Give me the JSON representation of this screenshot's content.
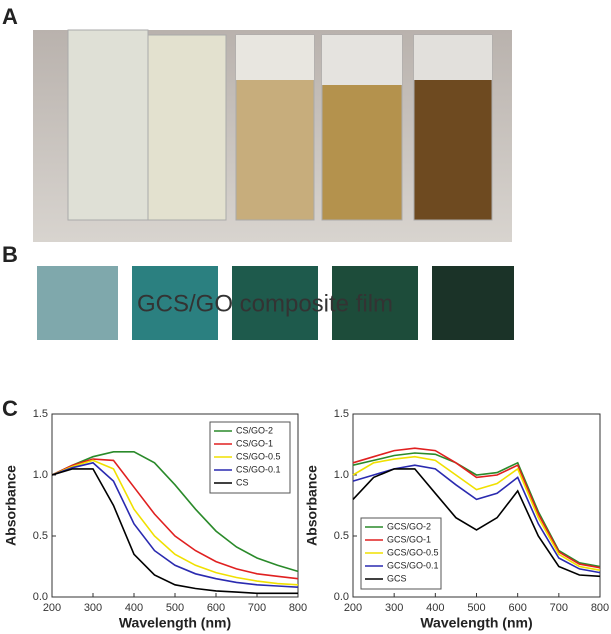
{
  "panels": {
    "a": "A",
    "b": "B",
    "c": "C",
    "film_label": "GCS/GO composite film"
  },
  "chart_data": [
    {
      "type": "line",
      "xlabel": "Wavelength (nm)",
      "ylabel": "Absorbance",
      "x": [
        200,
        250,
        300,
        350,
        400,
        450,
        500,
        550,
        600,
        650,
        700,
        750,
        800
      ],
      "xlim": [
        200,
        800
      ],
      "xticks": [
        200,
        300,
        400,
        500,
        600,
        700,
        800
      ],
      "ylim": [
        0,
        1.5
      ],
      "yticks": [
        {
          "value": 0,
          "label": "0.0"
        },
        {
          "value": 0.5,
          "label": "0.5"
        },
        {
          "value": 1,
          "label": "1.0"
        },
        {
          "value": 1.5,
          "label": "1.5"
        }
      ],
      "legend": "upper-right",
      "series": [
        {
          "name": "CS/GO-2",
          "color": "#2a8a2a",
          "values": [
            1.0,
            1.08,
            1.15,
            1.19,
            1.19,
            1.1,
            0.92,
            0.72,
            0.54,
            0.41,
            0.32,
            0.26,
            0.21
          ]
        },
        {
          "name": "CS/GO-1",
          "color": "#e02020",
          "values": [
            1.0,
            1.08,
            1.13,
            1.12,
            0.9,
            0.68,
            0.5,
            0.38,
            0.29,
            0.23,
            0.19,
            0.17,
            0.15
          ]
        },
        {
          "name": "CS/GO-0.5",
          "color": "#f0e000",
          "values": [
            1.0,
            1.07,
            1.12,
            1.05,
            0.72,
            0.5,
            0.35,
            0.26,
            0.2,
            0.16,
            0.13,
            0.11,
            0.1
          ]
        },
        {
          "name": "CS/GO-0.1",
          "color": "#2a2ab0",
          "values": [
            1.0,
            1.06,
            1.1,
            0.95,
            0.6,
            0.38,
            0.26,
            0.19,
            0.15,
            0.12,
            0.1,
            0.09,
            0.08
          ]
        },
        {
          "name": "CS",
          "color": "#000000",
          "values": [
            1.0,
            1.05,
            1.05,
            0.75,
            0.35,
            0.18,
            0.1,
            0.07,
            0.05,
            0.04,
            0.03,
            0.03,
            0.03
          ]
        }
      ]
    },
    {
      "type": "line",
      "xlabel": "Wavelength (nm)",
      "ylabel": "Absorbance",
      "x": [
        200,
        250,
        300,
        350,
        400,
        450,
        500,
        550,
        600,
        650,
        700,
        750,
        800
      ],
      "xlim": [
        200,
        800
      ],
      "xticks": [
        200,
        300,
        400,
        500,
        600,
        700,
        800
      ],
      "ylim": [
        0,
        1.5
      ],
      "yticks": [
        {
          "value": 0,
          "label": "0.0"
        },
        {
          "value": 0.5,
          "label": "0.5"
        },
        {
          "value": 1,
          "label": "1.0"
        },
        {
          "value": 1.5,
          "label": "1.5"
        }
      ],
      "legend": "lower-left",
      "series": [
        {
          "name": "GCS/GO-2",
          "color": "#2a8a2a",
          "values": [
            1.08,
            1.12,
            1.16,
            1.18,
            1.17,
            1.1,
            1.0,
            1.02,
            1.1,
            0.7,
            0.38,
            0.28,
            0.25
          ]
        },
        {
          "name": "GCS/GO-1",
          "color": "#e02020",
          "values": [
            1.1,
            1.15,
            1.2,
            1.22,
            1.2,
            1.1,
            0.98,
            1.0,
            1.08,
            0.68,
            0.37,
            0.27,
            0.24
          ]
        },
        {
          "name": "GCS/GO-0.5",
          "color": "#f0e000",
          "values": [
            1.0,
            1.1,
            1.13,
            1.15,
            1.12,
            1.0,
            0.88,
            0.93,
            1.05,
            0.65,
            0.35,
            0.25,
            0.22
          ]
        },
        {
          "name": "GCS/GO-0.1",
          "color": "#2a2ab0",
          "values": [
            0.95,
            1.0,
            1.05,
            1.08,
            1.05,
            0.92,
            0.8,
            0.85,
            0.98,
            0.6,
            0.32,
            0.23,
            0.2
          ]
        },
        {
          "name": "GCS",
          "color": "#000000",
          "values": [
            0.8,
            0.98,
            1.05,
            1.05,
            0.85,
            0.65,
            0.55,
            0.65,
            0.87,
            0.5,
            0.25,
            0.18,
            0.17
          ]
        }
      ]
    }
  ]
}
